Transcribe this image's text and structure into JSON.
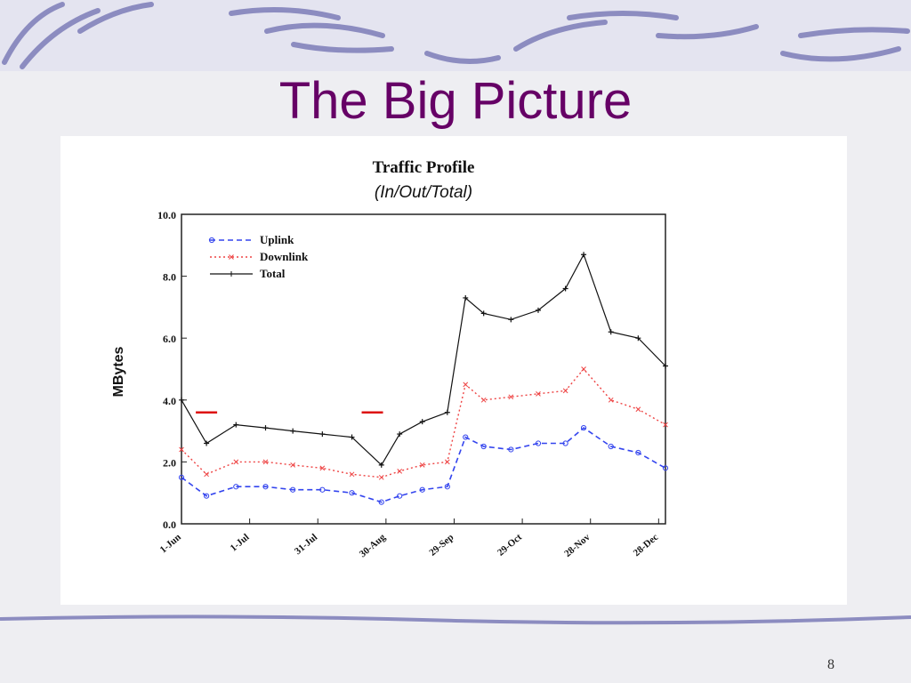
{
  "slide": {
    "title": "The Big Picture",
    "page_number": "8"
  },
  "colors": {
    "title": "#660066",
    "uplink": "#3344ee",
    "downlink": "#ee4444",
    "total": "#111111",
    "marker": "#dd1111"
  },
  "chart_data": {
    "type": "line",
    "title": "Traffic Profile",
    "subtitle": "(In/Out/Total)",
    "xlabel": "",
    "ylabel": "MBytes",
    "ylim": [
      0,
      10
    ],
    "yticks": [
      "0.0",
      "2.0",
      "4.0",
      "6.0",
      "8.0",
      "10.0"
    ],
    "xlim": [
      "2000-06-01",
      "2000-12-31"
    ],
    "xticks": [
      {
        "label": "1-Jun",
        "date": "2000-06-01"
      },
      {
        "label": "1-Jul",
        "date": "2000-07-01"
      },
      {
        "label": "31-Jul",
        "date": "2000-07-31"
      },
      {
        "label": "30-Aug",
        "date": "2000-08-30"
      },
      {
        "label": "29-Sep",
        "date": "2000-09-29"
      },
      {
        "label": "29-Oct",
        "date": "2000-10-29"
      },
      {
        "label": "28-Nov",
        "date": "2000-11-28"
      },
      {
        "label": "28-Dec",
        "date": "2000-12-28"
      }
    ],
    "legend": {
      "placement": "top-left",
      "entries": [
        "Uplink",
        "Downlink",
        "Total"
      ]
    },
    "grid": false,
    "x": [
      "2000-06-01",
      "2000-06-12",
      "2000-06-25",
      "2000-07-08",
      "2000-07-20",
      "2000-08-02",
      "2000-08-15",
      "2000-08-28",
      "2000-09-05",
      "2000-09-15",
      "2000-09-26",
      "2000-10-04",
      "2000-10-12",
      "2000-10-24",
      "2000-11-05",
      "2000-11-17",
      "2000-11-25",
      "2000-12-07",
      "2000-12-19",
      "2000-12-31"
    ],
    "series": [
      {
        "name": "Total",
        "values": [
          4.0,
          2.6,
          3.2,
          3.1,
          3.0,
          2.9,
          2.8,
          1.9,
          2.9,
          3.3,
          3.6,
          7.3,
          6.8,
          6.6,
          6.9,
          7.6,
          8.7,
          6.2,
          6.0,
          5.1
        ]
      },
      {
        "name": "Downlink",
        "values": [
          2.4,
          1.6,
          2.0,
          2.0,
          1.9,
          1.8,
          1.6,
          1.5,
          1.7,
          1.9,
          2.0,
          4.5,
          4.0,
          4.1,
          4.2,
          4.3,
          5.0,
          4.0,
          3.7,
          3.2
        ]
      },
      {
        "name": "Uplink",
        "values": [
          1.5,
          0.9,
          1.2,
          1.2,
          1.1,
          1.1,
          1.0,
          0.7,
          0.9,
          1.1,
          1.2,
          2.8,
          2.5,
          2.4,
          2.6,
          2.6,
          3.1,
          2.5,
          2.3,
          1.8
        ]
      }
    ],
    "annotations": [
      {
        "type": "red-bar",
        "date": "2000-06-12",
        "y": 3.6
      },
      {
        "type": "red-bar",
        "date": "2000-08-24",
        "y": 3.6
      }
    ]
  }
}
